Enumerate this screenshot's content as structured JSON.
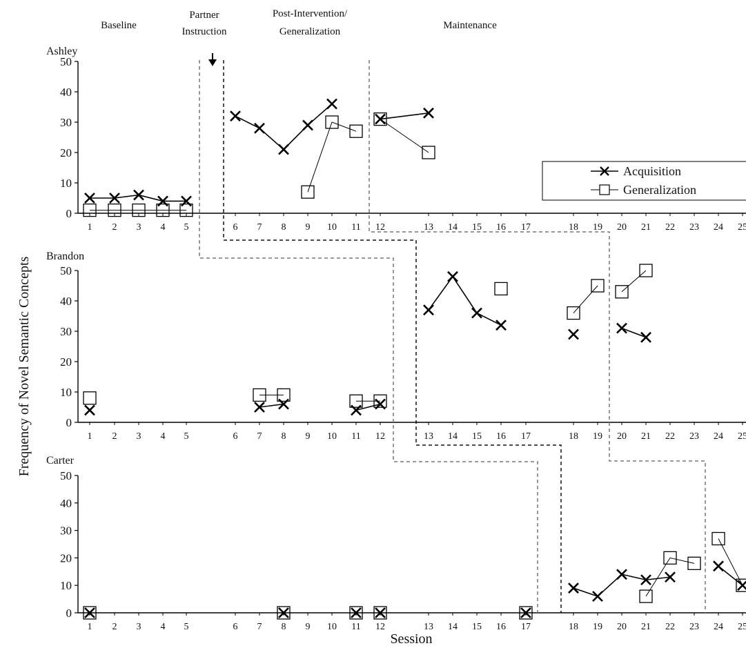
{
  "chart_data": {
    "type": "line",
    "title": "",
    "xlabel": "Session",
    "ylabel": "Frequency of Novel Semantic Concepts",
    "ylim": [
      0,
      50
    ],
    "yticks": [
      "0",
      "10",
      "20",
      "30",
      "40",
      "50"
    ],
    "phase_labels": [
      {
        "line1": "Baseline",
        "line2": ""
      },
      {
        "line1": "Partner",
        "line2": "Instruction"
      },
      {
        "line1": "Post-Intervention/",
        "line2": "Generalization"
      },
      {
        "line1": "Maintenance",
        "line2": ""
      }
    ],
    "legend": {
      "acquisition": "Acquisition",
      "generalization": "Generalization",
      "position": "upper-right of first panel"
    },
    "series_names": [
      "Acquisition",
      "Generalization"
    ],
    "panels": [
      {
        "name": "Ashley",
        "sessions": [
          "1",
          "2",
          "3",
          "4",
          "5",
          "6",
          "7",
          "8",
          "9",
          "10",
          "11",
          "12",
          "13",
          "14",
          "15",
          "16",
          "17",
          "18",
          "19",
          "20",
          "21",
          "22",
          "23",
          "24",
          "25"
        ],
        "acquisition": [
          [
            1,
            5
          ],
          [
            2,
            5
          ],
          [
            3,
            6
          ],
          [
            4,
            4
          ],
          [
            5,
            4
          ],
          null,
          [
            6,
            32
          ],
          [
            7,
            28
          ],
          [
            8,
            21
          ],
          [
            9,
            29
          ],
          [
            10,
            36
          ],
          null,
          [
            12,
            31
          ],
          [
            13,
            33
          ]
        ],
        "generalization": [
          [
            1,
            1
          ],
          [
            2,
            1
          ],
          [
            3,
            1
          ],
          [
            4,
            1
          ],
          [
            5,
            1
          ],
          null,
          [
            9,
            7
          ],
          [
            10,
            30
          ],
          [
            11,
            27
          ],
          null,
          [
            12,
            31
          ],
          [
            13,
            20
          ]
        ]
      },
      {
        "name": "Brandon",
        "sessions": [
          "1",
          "2",
          "3",
          "4",
          "5",
          "6",
          "7",
          "8",
          "9",
          "10",
          "11",
          "12",
          "13",
          "14",
          "15",
          "16",
          "17",
          "18",
          "19",
          "20",
          "21",
          "22",
          "23",
          "24",
          "25"
        ],
        "acquisition": [
          [
            1,
            4
          ],
          null,
          [
            7,
            5
          ],
          [
            8,
            6
          ],
          null,
          [
            11,
            4
          ],
          [
            12,
            6
          ],
          null,
          [
            13,
            37
          ],
          [
            14,
            48
          ],
          [
            15,
            36
          ],
          [
            16,
            32
          ],
          null,
          [
            18,
            29
          ],
          null,
          [
            20,
            31
          ],
          [
            21,
            28
          ]
        ],
        "generalization": [
          [
            1,
            8
          ],
          null,
          [
            7,
            9
          ],
          [
            8,
            9
          ],
          null,
          [
            11,
            7
          ],
          [
            12,
            7
          ],
          null,
          [
            16,
            44
          ],
          null,
          [
            18,
            36
          ],
          [
            19,
            45
          ],
          null,
          [
            20,
            43
          ],
          [
            21,
            50
          ]
        ]
      },
      {
        "name": "Carter",
        "sessions": [
          "1",
          "2",
          "3",
          "4",
          "5",
          "6",
          "7",
          "8",
          "9",
          "10",
          "11",
          "12",
          "13",
          "14",
          "15",
          "16",
          "17",
          "18",
          "19",
          "20",
          "21",
          "22",
          "23",
          "24",
          "25"
        ],
        "acquisition": [
          [
            1,
            0
          ],
          null,
          [
            8,
            0
          ],
          null,
          [
            11,
            0
          ],
          null,
          [
            12,
            0
          ],
          null,
          [
            17,
            0
          ],
          null,
          [
            18,
            9
          ],
          [
            19,
            6
          ],
          [
            20,
            14
          ],
          [
            21,
            12
          ],
          [
            22,
            13
          ],
          null,
          [
            24,
            17
          ],
          [
            25,
            10
          ]
        ],
        "generalization": [
          [
            1,
            0
          ],
          null,
          [
            8,
            0
          ],
          null,
          [
            11,
            0
          ],
          null,
          [
            12,
            0
          ],
          null,
          [
            17,
            0
          ],
          null,
          [
            21,
            6
          ],
          [
            22,
            20
          ],
          [
            23,
            18
          ],
          null,
          [
            24,
            27
          ],
          [
            25,
            10
          ]
        ]
      }
    ]
  }
}
